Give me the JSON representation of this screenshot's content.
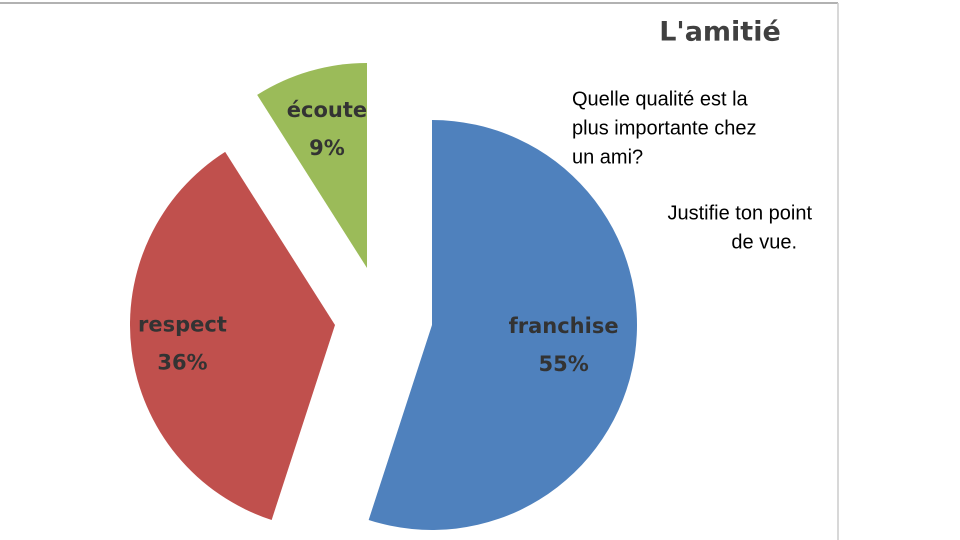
{
  "chart_data": {
    "type": "pie",
    "title": "L'amitié",
    "categories": [
      "franchise",
      "respect",
      "écoute"
    ],
    "values": [
      55,
      36,
      9
    ],
    "value_labels": [
      "55%",
      "36%",
      "9%"
    ],
    "colors": [
      "#4f81bd",
      "#c0504d",
      "#9bbb59"
    ]
  },
  "question": [
    "Quelle qualité est la",
    "plus importante chez",
    "un ami?"
  ],
  "instruction": [
    "Justifie ton point",
    "de vue."
  ]
}
